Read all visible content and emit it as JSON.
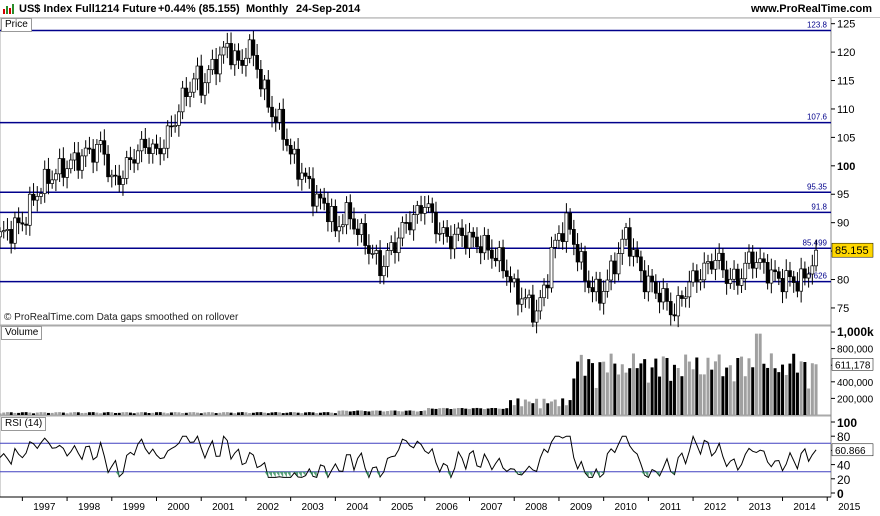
{
  "header": {
    "instrument": "US$ Index Full1214 Future",
    "change": "+0.44% (85.155)",
    "period": "Monthly",
    "date": "24-Sep-2014",
    "site": "www.ProRealTime.com"
  },
  "panels": {
    "price": "Price",
    "volume": "Volume",
    "rsi": "RSI (14)"
  },
  "watermark": "© ProRealTime.com  Data gaps smoothed on rollover",
  "colors": {
    "hline": "#00008b",
    "last_price_bg": "#ffd700",
    "volume_up": "#000000",
    "volume_down": "#a0a0a0",
    "rsi_band": "#4040c0",
    "rsi_fill": "#2e8b57"
  },
  "chart_data": [
    {
      "type": "candlestick",
      "panel": "Price",
      "x_start": 1996.5,
      "x_step_months": 1,
      "ylim": [
        72,
        126
      ],
      "y_ticks": [
        75,
        80,
        85,
        90,
        95,
        100,
        105,
        110,
        115,
        120,
        125
      ],
      "x_ticks": [
        "1997",
        "1998",
        "1999",
        "2000",
        "2001",
        "2002",
        "2003",
        "2004",
        "2005",
        "2006",
        "2007",
        "2008",
        "2009",
        "2010",
        "2011",
        "2012",
        "2013",
        "2014",
        "2015"
      ],
      "close_anchors": [
        [
          1996.5,
          87.5
        ],
        [
          1997.0,
          90
        ],
        [
          1997.3,
          95
        ],
        [
          1997.6,
          98
        ],
        [
          1998.0,
          100
        ],
        [
          1998.4,
          102
        ],
        [
          1998.8,
          103.5
        ],
        [
          1999.0,
          97
        ],
        [
          1999.2,
          98
        ],
        [
          1999.5,
          102
        ],
        [
          1999.8,
          104
        ],
        [
          2000.0,
          102
        ],
        [
          2000.3,
          106
        ],
        [
          2000.6,
          112
        ],
        [
          2000.9,
          116
        ],
        [
          2001.0,
          114
        ],
        [
          2001.3,
          118
        ],
        [
          2001.6,
          121
        ],
        [
          2001.9,
          117
        ],
        [
          2002.0,
          121
        ],
        [
          2002.2,
          119
        ],
        [
          2002.4,
          113
        ],
        [
          2002.6,
          109
        ],
        [
          2002.8,
          107
        ],
        [
          2003.0,
          102
        ],
        [
          2003.3,
          98
        ],
        [
          2003.6,
          94
        ],
        [
          2003.9,
          92
        ],
        [
          2004.0,
          88
        ],
        [
          2004.2,
          92
        ],
        [
          2004.4,
          90
        ],
        [
          2004.8,
          85
        ],
        [
          2005.0,
          82
        ],
        [
          2005.3,
          86
        ],
        [
          2005.6,
          90
        ],
        [
          2005.9,
          92
        ],
        [
          2006.0,
          94
        ],
        [
          2006.2,
          90
        ],
        [
          2006.5,
          87
        ],
        [
          2006.8,
          88
        ],
        [
          2007.0,
          87
        ],
        [
          2007.3,
          86
        ],
        [
          2007.6,
          84
        ],
        [
          2007.8,
          82
        ],
        [
          2008.0,
          78
        ],
        [
          2008.3,
          76
        ],
        [
          2008.5,
          74
        ],
        [
          2008.7,
          79
        ],
        [
          2008.85,
          85
        ],
        [
          2009.0,
          88
        ],
        [
          2009.2,
          90
        ],
        [
          2009.4,
          85
        ],
        [
          2009.6,
          80
        ],
        [
          2009.9,
          77
        ],
        [
          2010.1,
          80
        ],
        [
          2010.3,
          84
        ],
        [
          2010.5,
          88
        ],
        [
          2010.7,
          84
        ],
        [
          2010.9,
          80
        ],
        [
          2011.2,
          78
        ],
        [
          2011.4,
          76
        ],
        [
          2011.6,
          74
        ],
        [
          2011.8,
          78
        ],
        [
          2012.0,
          80
        ],
        [
          2012.3,
          82
        ],
        [
          2012.5,
          84
        ],
        [
          2012.8,
          80
        ],
        [
          2013.0,
          80
        ],
        [
          2013.3,
          84
        ],
        [
          2013.6,
          82
        ],
        [
          2013.9,
          80
        ],
        [
          2014.2,
          80
        ],
        [
          2014.4,
          79.5
        ],
        [
          2014.55,
          81
        ],
        [
          2014.75,
          85.155
        ]
      ],
      "horizontal_levels": [
        123.8,
        107.6,
        95.35,
        91.8,
        85.499,
        79.626
      ],
      "last_price": 85.155
    },
    {
      "type": "bar",
      "panel": "Volume",
      "ylim": [
        0,
        1000000
      ],
      "y_tick_labels": [
        "200,000",
        "400,000",
        "600,000",
        "800,000",
        "1,000k"
      ],
      "last_value_label": "611,178"
    },
    {
      "type": "line",
      "panel": "RSI (14)",
      "ylim": [
        0,
        100
      ],
      "y_tick_labels": [
        "0",
        "20",
        "40",
        "60",
        "80",
        "100"
      ],
      "bands": [
        70,
        30
      ],
      "last_value_label": "60.866"
    }
  ]
}
